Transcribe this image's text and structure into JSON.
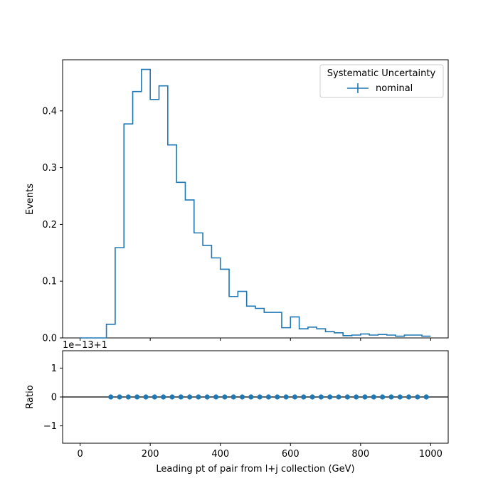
{
  "colors": {
    "series": "#1f77b4",
    "axis": "#000000",
    "background": "#ffffff"
  },
  "chart_data": [
    {
      "type": "line",
      "drawstyle": "steps",
      "ylabel": "Events",
      "xlim": [
        -50,
        1050
      ],
      "ylim": [
        0,
        0.49
      ],
      "xticks": [
        "0",
        "200",
        "400",
        "600",
        "800",
        "1000"
      ],
      "yticks": [
        "0.0",
        "0.1",
        "0.2",
        "0.3",
        "0.4"
      ],
      "legend": {
        "title": "Systematic Uncertainty",
        "placement": "top-right",
        "entries": [
          "nominal"
        ]
      },
      "bin_edges": [
        0,
        25,
        50,
        75,
        100,
        125,
        150,
        175,
        200,
        225,
        250,
        275,
        300,
        325,
        350,
        375,
        400,
        425,
        450,
        475,
        500,
        525,
        550,
        575,
        600,
        625,
        650,
        675,
        700,
        725,
        750,
        775,
        800,
        825,
        850,
        875,
        900,
        925,
        950,
        975,
        1000
      ],
      "series": [
        {
          "name": "nominal",
          "values": [
            0.0,
            0.0,
            0.0,
            0.024,
            0.159,
            0.377,
            0.434,
            0.473,
            0.42,
            0.444,
            0.34,
            0.274,
            0.243,
            0.185,
            0.163,
            0.141,
            0.121,
            0.073,
            0.082,
            0.056,
            0.052,
            0.045,
            0.045,
            0.018,
            0.037,
            0.016,
            0.019,
            0.016,
            0.011,
            0.009,
            0.004,
            0.005,
            0.007,
            0.005,
            0.006,
            0.005,
            0.003,
            0.005,
            0.005,
            0.003
          ]
        }
      ]
    },
    {
      "type": "scatter",
      "xlabel": "Leading pt of pair from l+j collection (GeV)",
      "ylabel": "Ratio",
      "offset_label": "1e−13+1",
      "xlim": [
        -50,
        1050
      ],
      "ylim": [
        -1.6,
        1.6
      ],
      "xticks": [
        "0",
        "200",
        "400",
        "600",
        "800",
        "1000"
      ],
      "yticks": [
        "−1",
        "0",
        "1"
      ],
      "reference_line": 0,
      "x": [
        87.5,
        112.5,
        137.5,
        162.5,
        187.5,
        212.5,
        237.5,
        262.5,
        287.5,
        312.5,
        337.5,
        362.5,
        387.5,
        412.5,
        437.5,
        462.5,
        487.5,
        512.5,
        537.5,
        562.5,
        587.5,
        612.5,
        637.5,
        662.5,
        687.5,
        712.5,
        737.5,
        762.5,
        787.5,
        812.5,
        837.5,
        862.5,
        887.5,
        912.5,
        937.5,
        962.5,
        987.5
      ],
      "y": [
        0,
        0,
        0,
        0,
        0,
        0,
        0,
        0,
        0,
        0,
        0,
        0,
        0,
        0,
        0,
        0,
        0,
        0,
        0,
        0,
        0,
        0,
        0,
        0,
        0,
        0,
        0,
        0,
        0,
        0,
        0,
        0,
        0,
        0,
        0,
        0,
        0
      ]
    }
  ]
}
